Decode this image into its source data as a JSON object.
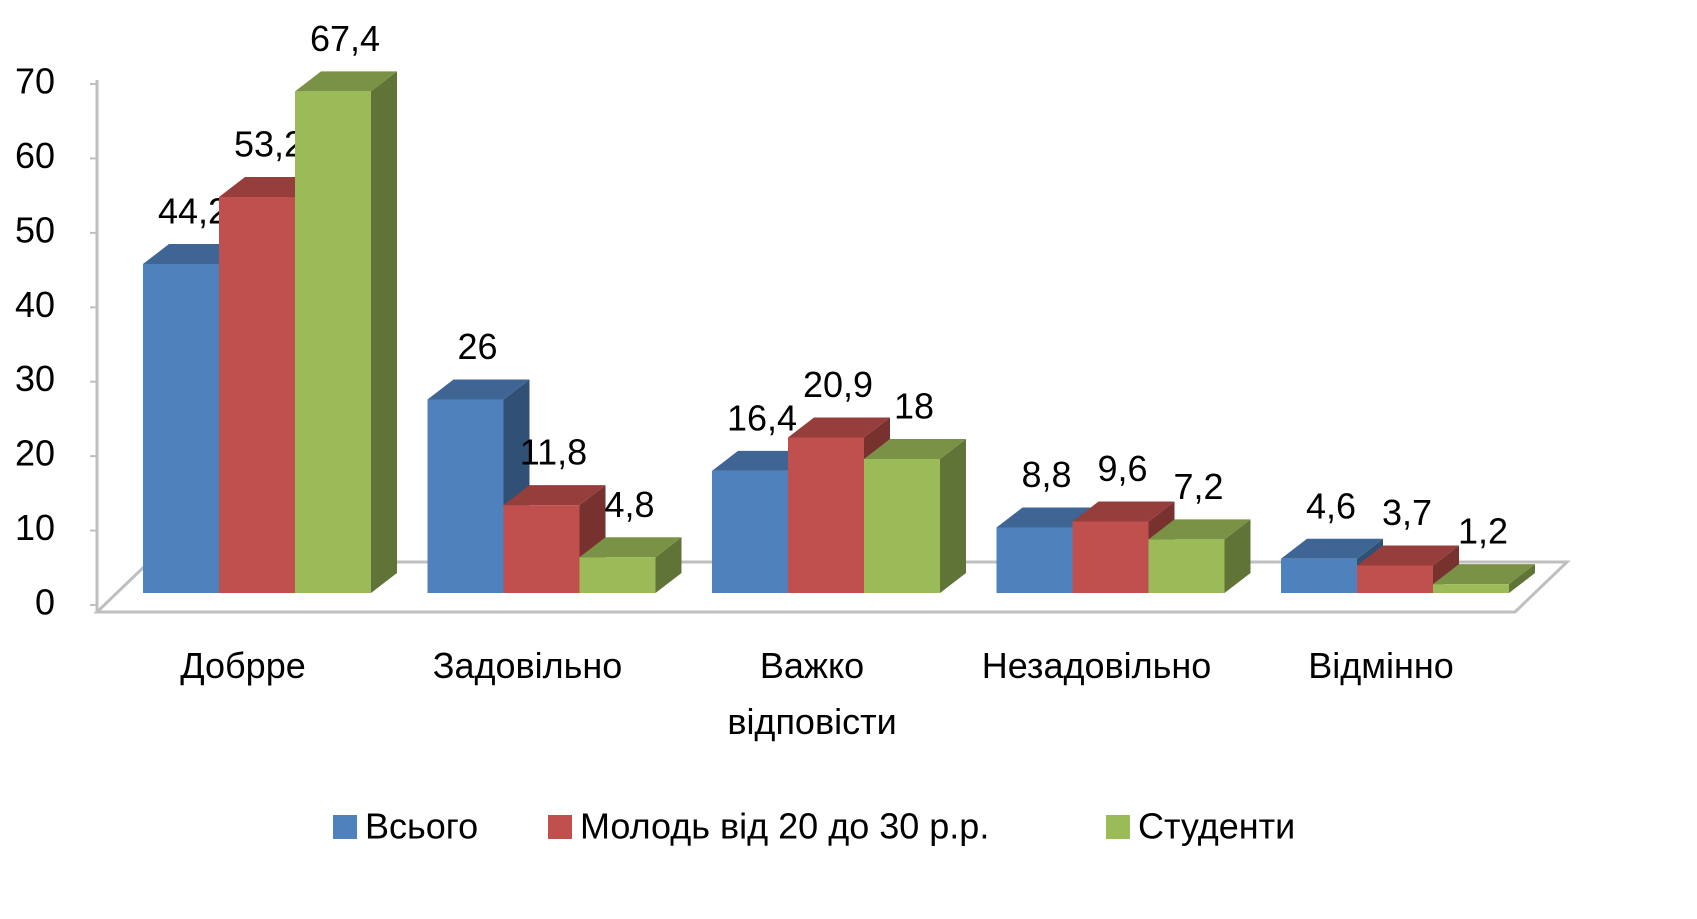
{
  "chart_data": {
    "type": "bar3d",
    "categories": [
      "Добрре",
      "Задовільно",
      "Важко\nвідповісти",
      "Незадовільно",
      "Відмінно"
    ],
    "series": [
      {
        "name": "Всього",
        "color": "#4F81BD",
        "values": [
          44.2,
          26,
          16.4,
          8.8,
          4.6
        ],
        "value_labels": [
          "44,2",
          "26",
          "16,4",
          "8,8",
          "4,6"
        ]
      },
      {
        "name": "Молодь від 20 до 30 р.р.",
        "color": "#C0504D",
        "values": [
          53.2,
          11.8,
          20.9,
          9.6,
          3.7
        ],
        "value_labels": [
          "53,2",
          "11,8",
          "20,9",
          "9,6",
          "3,7"
        ]
      },
      {
        "name": "Студенти",
        "color": "#9BBB59",
        "values": [
          67.4,
          4.8,
          18,
          7.2,
          1.2
        ],
        "value_labels": [
          "67,4",
          "4,8",
          "18",
          "7,2",
          "1,2"
        ]
      }
    ],
    "ylim": [
      0,
      70
    ],
    "yticks": [
      0,
      10,
      20,
      30,
      40,
      50,
      60,
      70
    ],
    "legend": "bottom"
  }
}
